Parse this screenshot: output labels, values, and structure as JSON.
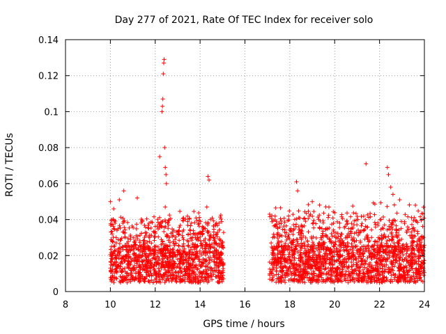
{
  "chart_data": {
    "type": "scatter",
    "title": "Day 277 of 2021, Rate Of TEC Index for receiver solo",
    "xlabel": "GPS time / hours",
    "ylabel": "ROTI / TECUs",
    "xlim": [
      8,
      24
    ],
    "ylim": [
      0,
      0.14
    ],
    "grid": true,
    "x_ticks": [
      8,
      10,
      12,
      14,
      16,
      18,
      20,
      22,
      24
    ],
    "y_ticks": [
      0,
      0.02,
      0.04,
      0.06,
      0.08,
      0.1,
      0.12,
      0.14
    ],
    "x_tick_labels": [
      "8",
      "10",
      "12",
      "14",
      "16",
      "18",
      "20",
      "22",
      "24"
    ],
    "y_tick_labels": [
      "0",
      "0.02",
      "0.04",
      "0.06",
      "0.08",
      "0.1",
      "0.12",
      "0.14"
    ],
    "marker": "+",
    "color": "#ff0000",
    "series": [
      {
        "name": "ROTI",
        "segments": [
          {
            "x_start": 10.0,
            "x_end": 15.05,
            "base_range": [
              0.005,
              0.025
            ],
            "spread_max": 0.047
          },
          {
            "x_start": 17.1,
            "x_end": 24.0,
            "base_range": [
              0.005,
              0.025
            ],
            "spread_max": 0.05
          }
        ],
        "notable_points": [
          {
            "x": 10.0,
            "y": 0.05
          },
          {
            "x": 10.15,
            "y": 0.046
          },
          {
            "x": 10.4,
            "y": 0.051
          },
          {
            "x": 10.6,
            "y": 0.056
          },
          {
            "x": 11.2,
            "y": 0.052
          },
          {
            "x": 12.2,
            "y": 0.075
          },
          {
            "x": 12.3,
            "y": 0.1
          },
          {
            "x": 12.32,
            "y": 0.103
          },
          {
            "x": 12.34,
            "y": 0.107
          },
          {
            "x": 12.36,
            "y": 0.121
          },
          {
            "x": 12.38,
            "y": 0.127
          },
          {
            "x": 12.4,
            "y": 0.129
          },
          {
            "x": 12.42,
            "y": 0.08
          },
          {
            "x": 12.45,
            "y": 0.069
          },
          {
            "x": 12.48,
            "y": 0.065
          },
          {
            "x": 12.5,
            "y": 0.06
          },
          {
            "x": 12.45,
            "y": 0.047
          },
          {
            "x": 14.35,
            "y": 0.064
          },
          {
            "x": 14.4,
            "y": 0.062
          },
          {
            "x": 14.3,
            "y": 0.047
          },
          {
            "x": 17.4,
            "y": 0.039
          },
          {
            "x": 18.3,
            "y": 0.061
          },
          {
            "x": 18.35,
            "y": 0.056
          },
          {
            "x": 19.0,
            "y": 0.05
          },
          {
            "x": 21.4,
            "y": 0.071
          },
          {
            "x": 22.35,
            "y": 0.069
          },
          {
            "x": 22.4,
            "y": 0.065
          },
          {
            "x": 22.5,
            "y": 0.058
          },
          {
            "x": 22.6,
            "y": 0.054
          },
          {
            "x": 22.9,
            "y": 0.051
          },
          {
            "x": 23.6,
            "y": 0.048
          }
        ]
      }
    ]
  }
}
